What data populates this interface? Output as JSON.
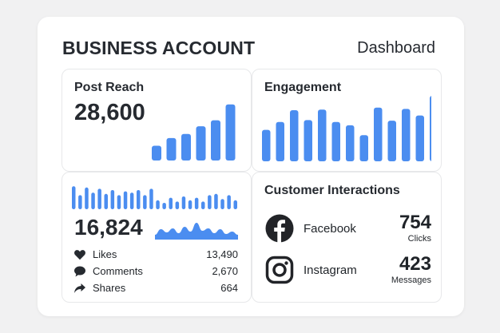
{
  "header": {
    "title": "BUSINESS ACCOUNT",
    "right_label": "Dashboard"
  },
  "post_reach": {
    "title": "Post Reach",
    "value": "28,600",
    "bars": [
      0.25,
      0.38,
      0.45,
      0.58,
      0.68,
      0.95
    ]
  },
  "engagement": {
    "title": "Engagement",
    "bars": [
      0.48,
      0.6,
      0.78,
      0.63,
      0.79,
      0.6,
      0.55,
      0.4,
      0.82,
      0.62,
      0.8,
      0.7,
      1.0
    ]
  },
  "stats": {
    "value": "16,824",
    "bars": [
      0.9,
      0.55,
      0.85,
      0.65,
      0.8,
      0.6,
      0.75,
      0.55,
      0.7,
      0.65,
      0.75,
      0.55,
      0.8,
      0.35,
      0.25,
      0.45,
      0.3,
      0.5,
      0.35,
      0.45,
      0.3,
      0.55,
      0.6,
      0.4,
      0.55,
      0.35
    ],
    "wave": [
      0.2,
      0.55,
      0.35,
      0.6,
      0.3,
      0.7,
      0.4,
      0.95,
      0.45,
      0.6,
      0.3,
      0.55,
      0.25,
      0.4,
      0.2
    ],
    "rows": [
      {
        "icon": "heart-icon",
        "label": "Likes",
        "value": "13,490"
      },
      {
        "icon": "comment-icon",
        "label": "Comments",
        "value": "2,670"
      },
      {
        "icon": "share-icon",
        "label": "Shares",
        "value": "664"
      }
    ]
  },
  "customer": {
    "title": "Customer Interactions",
    "items": [
      {
        "icon": "facebook-icon",
        "name": "Facebook",
        "value": "754",
        "unit": "Clicks"
      },
      {
        "icon": "instagram-icon",
        "name": "Instagram",
        "value": "423",
        "unit": "Messages"
      }
    ]
  },
  "colors": {
    "accent": "#4b8df0",
    "text": "#262a30",
    "background": "#f1f1f2"
  }
}
